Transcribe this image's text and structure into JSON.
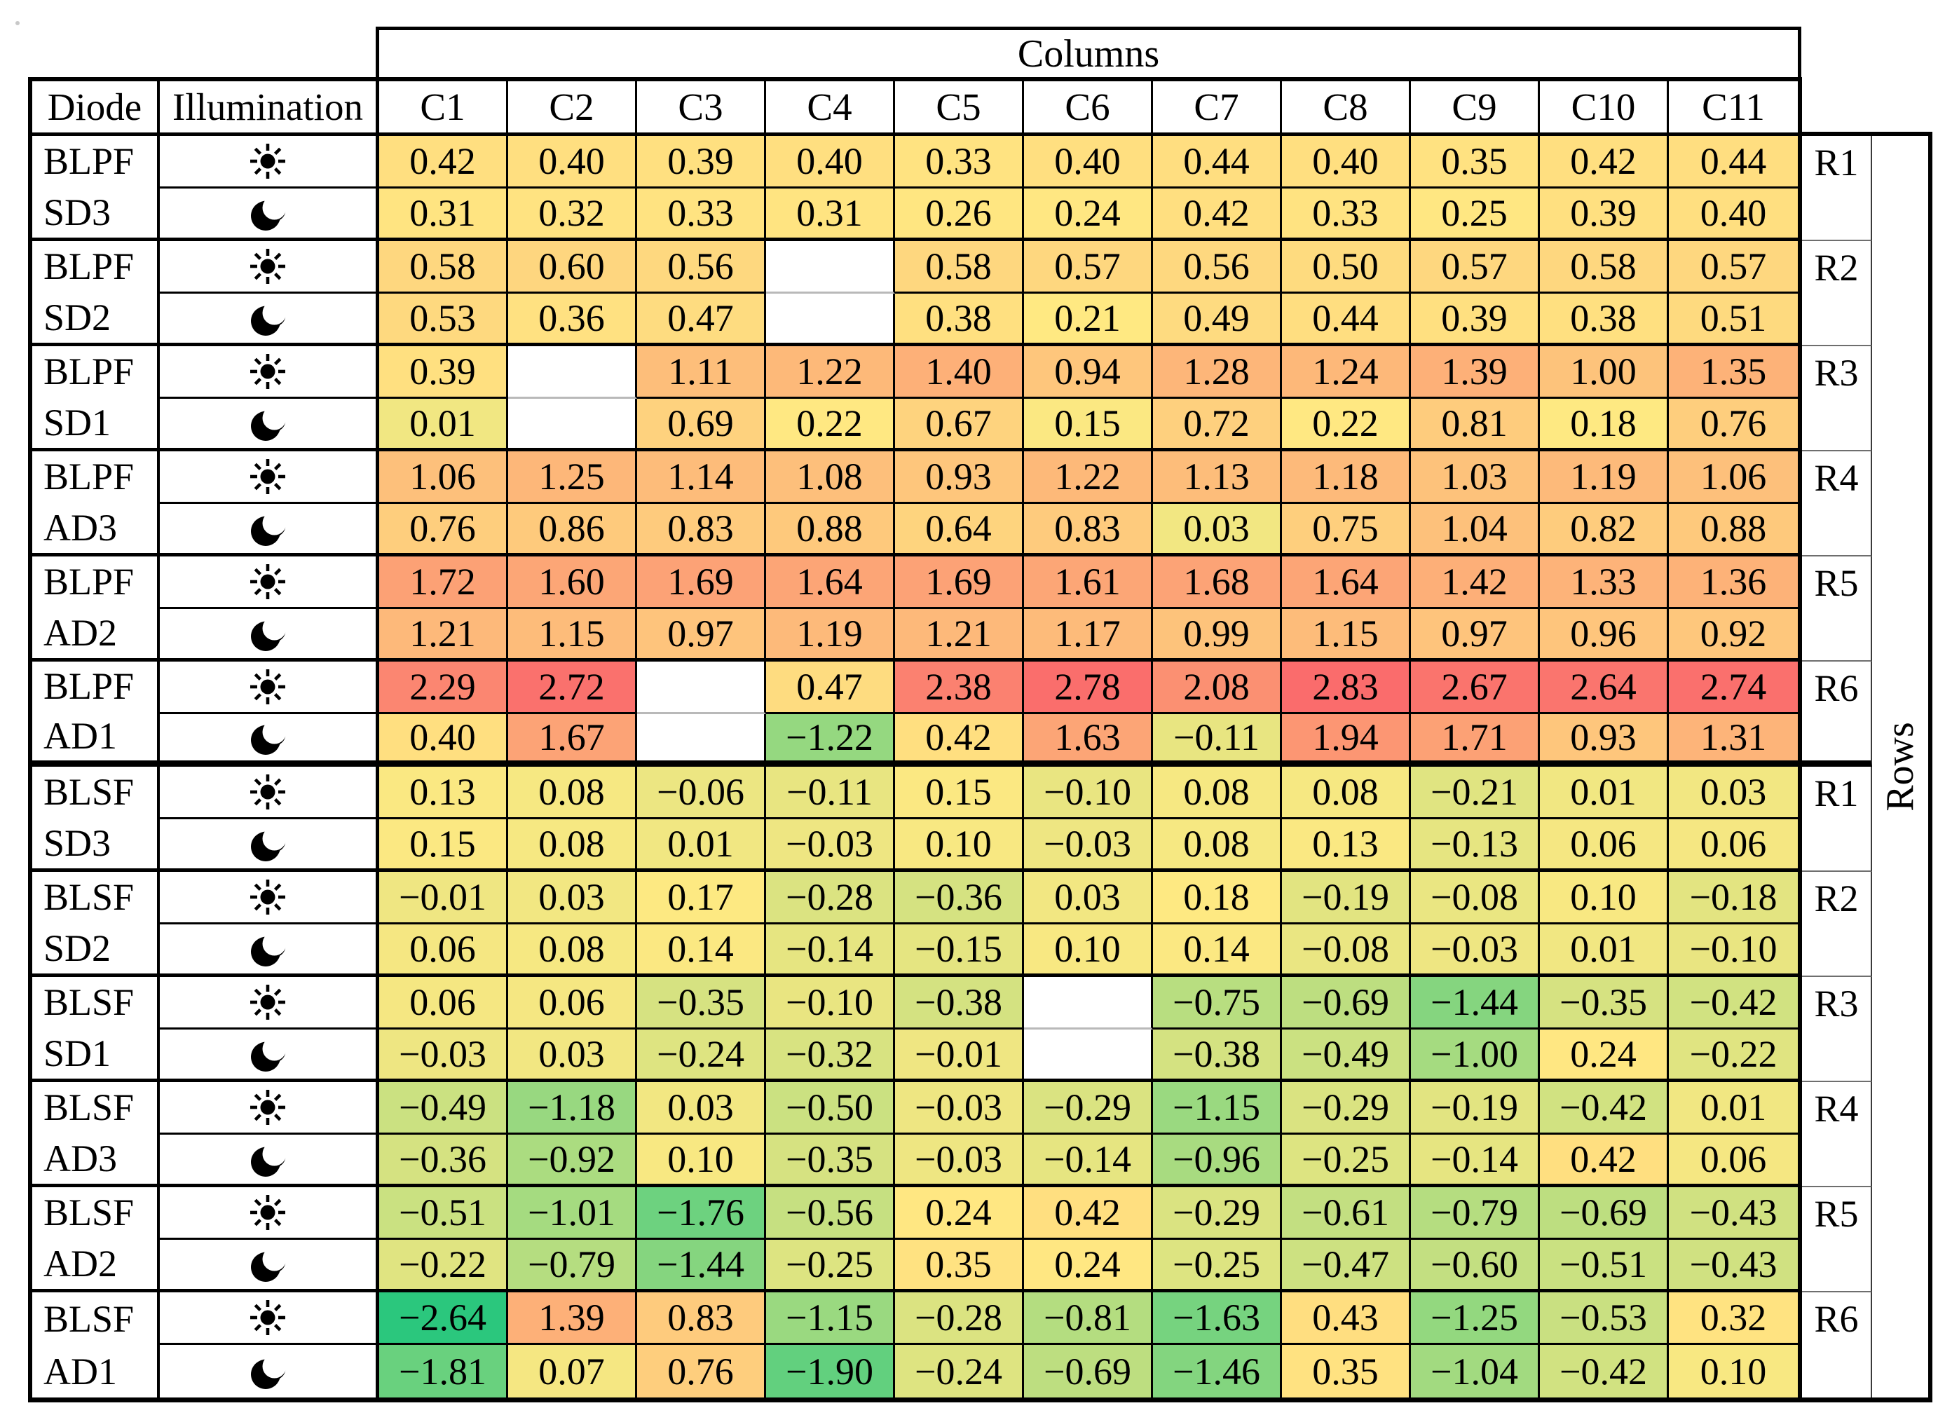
{
  "chart_data": {
    "type": "heatmap",
    "title": "",
    "columns_axis_label": "Columns",
    "rows_axis_label": "Rows",
    "headers": {
      "diode": "Diode",
      "illumination": "Illumination"
    },
    "col_headers": [
      "C1",
      "C2",
      "C3",
      "C4",
      "C5",
      "C6",
      "C7",
      "C8",
      "C9",
      "C10",
      "C11"
    ],
    "legend_position": "none",
    "grid": true,
    "color_scale": {
      "min": -2.64,
      "mid": 0.2,
      "max": 2.83,
      "min_color": "#2BC77D",
      "mid_color": "#FFE982",
      "max_color": "#FA6C6C"
    },
    "groups": [
      {
        "diode_line1": "BLPF",
        "diode_line2": "SD3",
        "row_label": "R1",
        "sun": [
          0.42,
          0.4,
          0.39,
          0.4,
          0.33,
          0.4,
          0.44,
          0.4,
          0.35,
          0.42,
          0.44
        ],
        "moon": [
          0.31,
          0.32,
          0.33,
          0.31,
          0.26,
          0.24,
          0.42,
          0.33,
          0.25,
          0.39,
          0.4
        ]
      },
      {
        "diode_line1": "BLPF",
        "diode_line2": "SD2",
        "row_label": "R2",
        "sun": [
          0.58,
          0.6,
          0.56,
          null,
          0.58,
          0.57,
          0.56,
          0.5,
          0.57,
          0.58,
          0.57
        ],
        "moon": [
          0.53,
          0.36,
          0.47,
          null,
          0.38,
          0.21,
          0.49,
          0.44,
          0.39,
          0.38,
          0.51
        ]
      },
      {
        "diode_line1": "BLPF",
        "diode_line2": "SD1",
        "row_label": "R3",
        "sun": [
          0.39,
          null,
          1.11,
          1.22,
          1.4,
          0.94,
          1.28,
          1.24,
          1.39,
          1.0,
          1.35
        ],
        "moon": [
          0.01,
          null,
          0.69,
          0.22,
          0.67,
          0.15,
          0.72,
          0.22,
          0.81,
          0.18,
          0.76
        ]
      },
      {
        "diode_line1": "BLPF",
        "diode_line2": "AD3",
        "row_label": "R4",
        "sun": [
          1.06,
          1.25,
          1.14,
          1.08,
          0.93,
          1.22,
          1.13,
          1.18,
          1.03,
          1.19,
          1.06
        ],
        "moon": [
          0.76,
          0.86,
          0.83,
          0.88,
          0.64,
          0.83,
          0.03,
          0.75,
          1.04,
          0.82,
          0.88
        ]
      },
      {
        "diode_line1": "BLPF",
        "diode_line2": "AD2",
        "row_label": "R5",
        "sun": [
          1.72,
          1.6,
          1.69,
          1.64,
          1.69,
          1.61,
          1.68,
          1.64,
          1.42,
          1.33,
          1.36
        ],
        "moon": [
          1.21,
          1.15,
          0.97,
          1.19,
          1.21,
          1.17,
          0.99,
          1.15,
          0.97,
          0.96,
          0.92
        ]
      },
      {
        "diode_line1": "BLPF",
        "diode_line2": "AD1",
        "row_label": "R6",
        "sun": [
          2.29,
          2.72,
          null,
          0.47,
          2.38,
          2.78,
          2.08,
          2.83,
          2.67,
          2.64,
          2.74
        ],
        "moon": [
          0.4,
          1.67,
          null,
          -1.22,
          0.42,
          1.63,
          -0.11,
          1.94,
          1.71,
          0.93,
          1.31
        ]
      },
      {
        "diode_line1": "BLSF",
        "diode_line2": "SD3",
        "row_label": "R1",
        "sun": [
          0.13,
          0.08,
          -0.06,
          -0.11,
          0.15,
          -0.1,
          0.08,
          0.08,
          -0.21,
          0.01,
          0.03
        ],
        "moon": [
          0.15,
          0.08,
          0.01,
          -0.03,
          0.1,
          -0.03,
          0.08,
          0.13,
          -0.13,
          0.06,
          0.06
        ]
      },
      {
        "diode_line1": "BLSF",
        "diode_line2": "SD2",
        "row_label": "R2",
        "sun": [
          -0.01,
          0.03,
          0.17,
          -0.28,
          -0.36,
          0.03,
          0.18,
          -0.19,
          -0.08,
          0.1,
          -0.18
        ],
        "moon": [
          0.06,
          0.08,
          0.14,
          -0.14,
          -0.15,
          0.1,
          0.14,
          -0.08,
          -0.03,
          0.01,
          -0.1
        ]
      },
      {
        "diode_line1": "BLSF",
        "diode_line2": "SD1",
        "row_label": "R3",
        "sun": [
          0.06,
          0.06,
          -0.35,
          -0.1,
          -0.38,
          null,
          -0.75,
          -0.69,
          -1.44,
          -0.35,
          -0.42
        ],
        "moon": [
          -0.03,
          0.03,
          -0.24,
          -0.32,
          -0.01,
          null,
          -0.38,
          -0.49,
          -1.0,
          0.24,
          -0.22
        ]
      },
      {
        "diode_line1": "BLSF",
        "diode_line2": "AD3",
        "row_label": "R4",
        "sun": [
          -0.49,
          -1.18,
          0.03,
          -0.5,
          -0.03,
          -0.29,
          -1.15,
          -0.29,
          -0.19,
          -0.42,
          0.01
        ],
        "moon": [
          -0.36,
          -0.92,
          0.1,
          -0.35,
          -0.03,
          -0.14,
          -0.96,
          -0.25,
          -0.14,
          0.42,
          0.06
        ]
      },
      {
        "diode_line1": "BLSF",
        "diode_line2": "AD2",
        "row_label": "R5",
        "sun": [
          -0.51,
          -1.01,
          -1.76,
          -0.56,
          0.24,
          0.42,
          -0.29,
          -0.61,
          -0.79,
          -0.69,
          -0.43
        ],
        "moon": [
          -0.22,
          -0.79,
          -1.44,
          -0.25,
          0.35,
          0.24,
          -0.25,
          -0.47,
          -0.6,
          -0.51,
          -0.43
        ]
      },
      {
        "diode_line1": "BLSF",
        "diode_line2": "AD1",
        "row_label": "R6",
        "sun": [
          -2.64,
          1.39,
          0.83,
          -1.15,
          -0.28,
          -0.81,
          -1.63,
          0.43,
          -1.25,
          -0.53,
          0.32
        ],
        "moon": [
          -1.81,
          0.07,
          0.76,
          -1.9,
          -0.24,
          -0.69,
          -1.46,
          0.35,
          -1.04,
          -0.42,
          0.1
        ]
      }
    ]
  }
}
